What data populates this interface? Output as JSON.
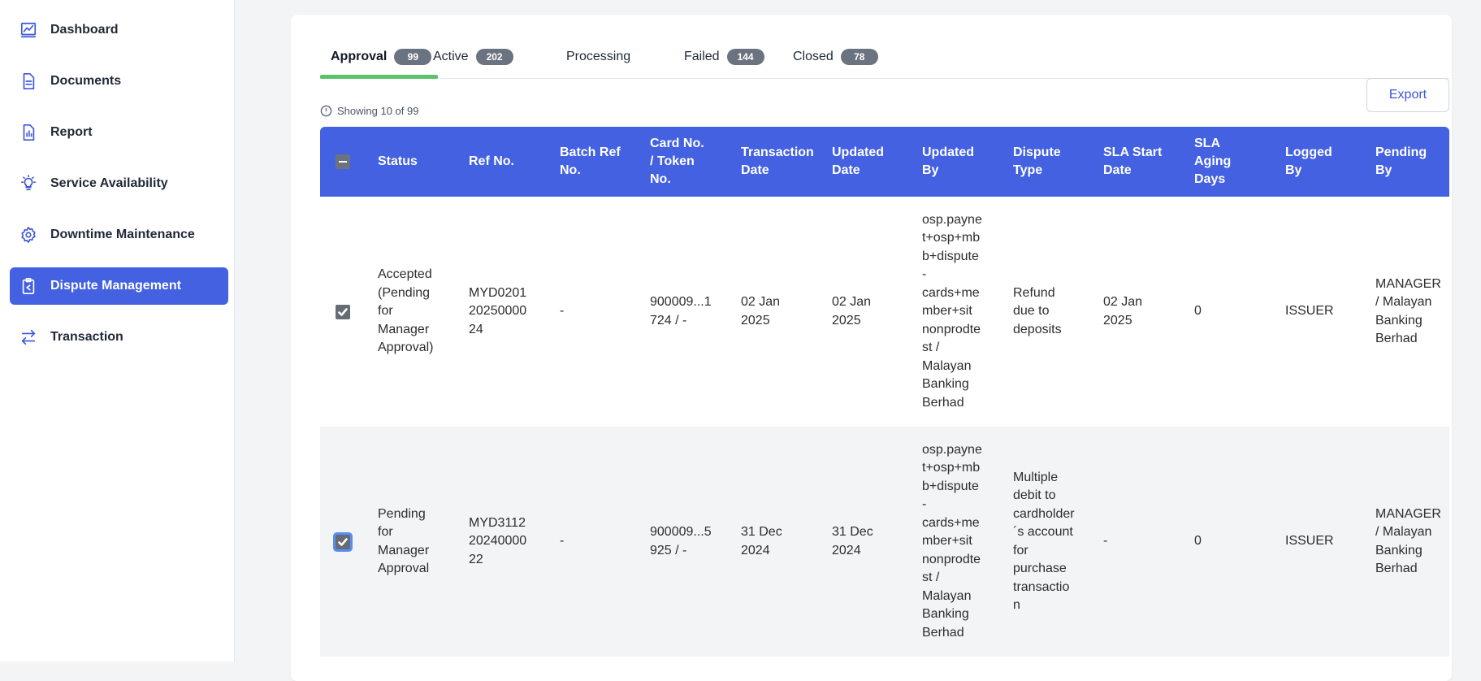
{
  "sidebar": {
    "items": [
      {
        "label": "Dashboard",
        "icon": "chart-line-icon",
        "active": false
      },
      {
        "label": "Documents",
        "icon": "document-icon",
        "active": false
      },
      {
        "label": "Report",
        "icon": "report-icon",
        "active": false
      },
      {
        "label": "Service Availability",
        "icon": "lightbulb-icon",
        "active": false
      },
      {
        "label": "Downtime Maintenance",
        "icon": "gear-icon",
        "active": false
      },
      {
        "label": "Dispute Management",
        "icon": "clipboard-icon",
        "active": true
      },
      {
        "label": "Transaction",
        "icon": "arrows-exchange-icon",
        "active": false
      }
    ]
  },
  "tabs": [
    {
      "label": "Approval",
      "count": "99",
      "active": true
    },
    {
      "label": "Active",
      "count": "202",
      "active": false
    },
    {
      "label": "Processing",
      "count": "",
      "active": false
    },
    {
      "label": "Failed",
      "count": "144",
      "active": false
    },
    {
      "label": "Closed",
      "count": "78",
      "active": false
    }
  ],
  "showing_text": "Showing 10 of 99",
  "export_label": "Export",
  "table": {
    "headers": [
      "Status",
      "Ref No.",
      "Batch Ref No.",
      "Card No. / Token No.",
      "Transaction Date",
      "Updated Date",
      "Updated By",
      "Dispute Type",
      "SLA Start Date",
      "SLA Aging Days",
      "Logged By",
      "Pending By"
    ],
    "header_lines": [
      [
        "Status"
      ],
      [
        "Ref No."
      ],
      [
        "Batch Ref",
        "No."
      ],
      [
        "Card No.",
        "/ Token",
        "No."
      ],
      [
        "Transaction",
        "Date"
      ],
      [
        "Updated",
        "Date"
      ],
      [
        "Updated",
        "By"
      ],
      [
        "Dispute",
        "Type"
      ],
      [
        "SLA Start",
        "Date"
      ],
      [
        "SLA",
        "Aging",
        "Days"
      ],
      [
        "Logged",
        "By"
      ],
      [
        "Pending",
        "By"
      ]
    ],
    "rows": [
      {
        "checked": true,
        "cells": [
          [
            "Accepted",
            "(Pending",
            "for",
            "Manager",
            "Approval)"
          ],
          [
            "MYD0201",
            "20250000",
            "24"
          ],
          [
            "-"
          ],
          [
            "900009...1",
            "724 / -"
          ],
          [
            "02 Jan",
            "2025"
          ],
          [
            "02 Jan",
            "2025"
          ],
          [
            "osp.payne",
            "t+osp+mb",
            "b+dispute",
            "-",
            "cards+me",
            "mber+sit",
            "nonprodte",
            "st /",
            "Malayan",
            "Banking",
            "Berhad"
          ],
          [
            "Refund",
            "due to",
            "deposits"
          ],
          [
            "02 Jan",
            "2025"
          ],
          [
            "0"
          ],
          [
            "ISSUER"
          ],
          [
            "MANAGER",
            "/ Malayan",
            "Banking",
            "Berhad"
          ]
        ]
      },
      {
        "checked": true,
        "cells": [
          [
            "Pending",
            "for",
            "Manager",
            "Approval"
          ],
          [
            "MYD3112",
            "20240000",
            "22"
          ],
          [
            "-"
          ],
          [
            "900009...5",
            "925 / -"
          ],
          [
            "31 Dec",
            "2024"
          ],
          [
            "31 Dec",
            "2024"
          ],
          [
            "osp.payne",
            "t+osp+mb",
            "b+dispute",
            "-",
            "cards+me",
            "mber+sit",
            "nonprodte",
            "st /",
            "Malayan",
            "Banking",
            "Berhad"
          ],
          [
            "Multiple",
            "debit to",
            "cardholder",
            "´s account",
            "for",
            "purchase",
            "transactio",
            "n"
          ],
          [
            "-"
          ],
          [
            "0"
          ],
          [
            "ISSUER"
          ],
          [
            "MANAGER",
            "/ Malayan",
            "Banking",
            "Berhad"
          ]
        ]
      }
    ]
  },
  "colors": {
    "accent": "#4361e0",
    "tab_underline": "#5cc36a",
    "badge": "#6b7280"
  }
}
